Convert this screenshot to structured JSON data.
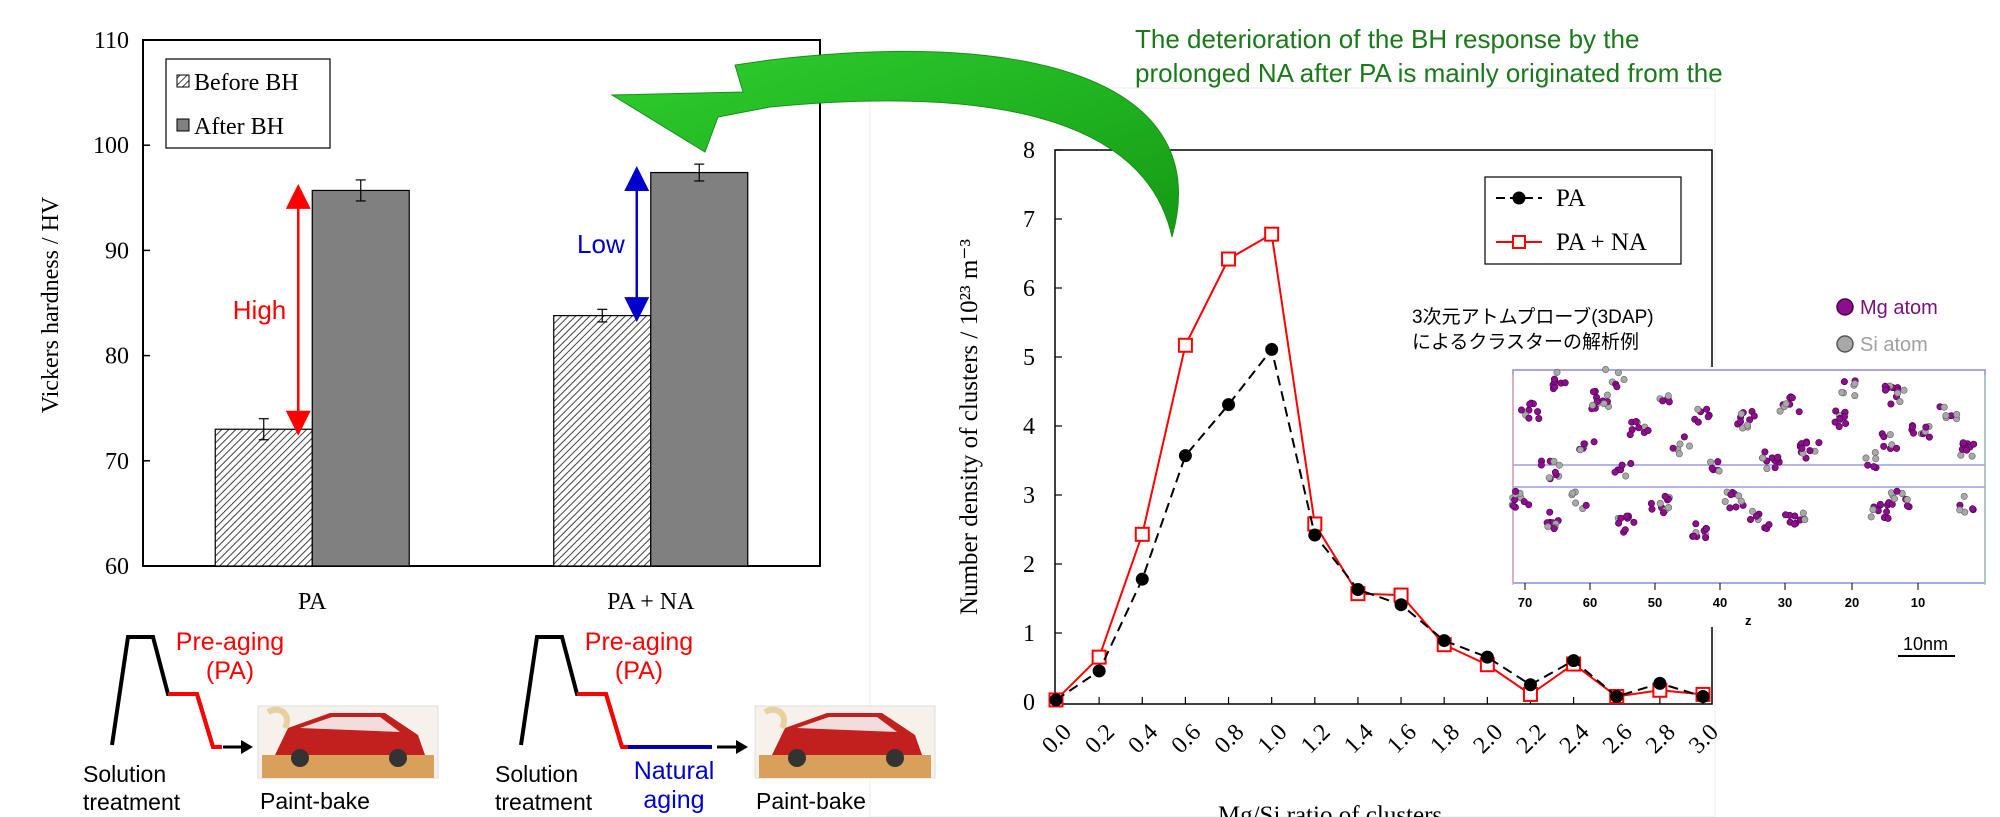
{
  "annotation": "The deterioration of the BH response by the prolonged NA after PA is mainly originated from the increase of the Si-rich clusters.",
  "chart_data": [
    {
      "type": "bar",
      "categories": [
        "PA",
        "PA + NA"
      ],
      "series": [
        {
          "name": "Before BH",
          "values": [
            73.0,
            83.8
          ],
          "errors": [
            1.0,
            0.6
          ],
          "color": "#ffffff",
          "pattern": "hatched"
        },
        {
          "name": "After BH",
          "values": [
            95.7,
            97.4
          ],
          "errors": [
            1.0,
            0.8
          ],
          "color": "#808080"
        }
      ],
      "title": "",
      "xlabel": "",
      "ylabel": "Vickers hardness  / HV",
      "ylim": [
        60,
        110
      ],
      "yticks": [
        60,
        70,
        80,
        90,
        100,
        110
      ],
      "legend": "top-left",
      "annotations": [
        {
          "text": "High",
          "color": "#ff0000",
          "category": "PA",
          "from": 73.0,
          "to": 95.7
        },
        {
          "text": "Low",
          "color": "#0000cc",
          "category": "PA + NA",
          "from": 83.8,
          "to": 97.4
        }
      ]
    },
    {
      "type": "line",
      "x": [
        0.0,
        0.2,
        0.4,
        0.6,
        0.8,
        1.0,
        1.2,
        1.4,
        1.6,
        1.8,
        2.0,
        2.2,
        2.4,
        2.6,
        2.8,
        3.0
      ],
      "xtick_labels": [
        "0.0",
        "0.2",
        "0.4",
        "0.6",
        "0.8",
        "1.0",
        "1.2",
        "1.4",
        "1.6",
        "1.8",
        "2.0",
        "2.2",
        "2.4",
        "2.6",
        "2.8",
        "3.0"
      ],
      "series": [
        {
          "name": "PA",
          "values": [
            0.03,
            0.45,
            1.78,
            3.57,
            4.31,
            5.11,
            2.42,
            1.63,
            1.41,
            0.89,
            0.65,
            0.25,
            0.6,
            0.08,
            0.27,
            0.08
          ],
          "color": "#000000",
          "marker": "circle",
          "dash": true
        },
        {
          "name": "PA + NA",
          "values": [
            0.03,
            0.65,
            2.43,
            5.17,
            6.42,
            6.78,
            2.58,
            1.57,
            1.55,
            0.83,
            0.54,
            0.11,
            0.55,
            0.08,
            0.17,
            0.11
          ],
          "color": "#ff0000",
          "marker": "square-open"
        }
      ],
      "title": "",
      "xlabel": "Mg/Si ratio of clusters",
      "ylabel": "Number density of clusters / 10²³ m⁻³",
      "xlim": [
        0,
        3.0
      ],
      "ylim": [
        0,
        8
      ],
      "yticks": [
        0,
        1,
        2,
        3,
        4,
        5,
        6,
        7,
        8
      ],
      "legend": "top-right",
      "grid": false
    }
  ],
  "inset": {
    "caption_line1": "3次元アトムプローブ(3DAP)",
    "caption_line2": "によるクラスターの解析例",
    "legend_mg": "Mg atom",
    "legend_si": "Si atom",
    "axis_ticks": [
      "70",
      "60",
      "50",
      "40",
      "30",
      "20",
      "10"
    ],
    "axis_label": "z",
    "scale_bar": "10nm",
    "mg_color": "#8e0c8e",
    "si_color": "#a8a8a8"
  },
  "process_left": {
    "preaging_line1": "Pre-aging",
    "preaging_line2": "(PA)",
    "solution_line1": "Solution",
    "solution_line2": "treatment",
    "paintbake": "Paint-bake"
  },
  "process_right": {
    "preaging_line1": "Pre-aging",
    "preaging_line2": "(PA)",
    "natural_line1": "Natural",
    "natural_line2": "aging",
    "solution_line1": "Solution",
    "solution_line2": "treatment",
    "paintbake": "Paint-bake"
  },
  "colors": {
    "accent_red": "#ff0000",
    "accent_blue": "#0000cc",
    "annotation_green": "#1a7a1a",
    "arrow_green": "#22b822"
  }
}
